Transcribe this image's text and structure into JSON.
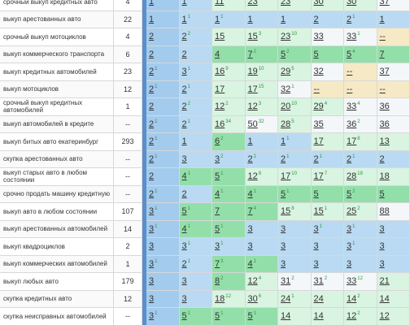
{
  "table": {
    "rows": [
      {
        "keyword": "срочный выкуп кредитных авто",
        "freq": 4,
        "cells": [
          [
            1
          ],
          [
            1
          ],
          [
            11,
            2
          ],
          [
            23
          ],
          [
            23,
            1
          ],
          [
            30
          ],
          [
            30,
            1
          ],
          [
            37
          ]
        ]
      },
      {
        "keyword": "выкуп арестованных авто",
        "freq": 22,
        "cells": [
          [
            1
          ],
          [
            1,
            1
          ],
          [
            1,
            1
          ],
          [
            1
          ],
          [
            1
          ],
          [
            2
          ],
          [
            2,
            1
          ],
          [
            1
          ]
        ]
      },
      {
        "keyword": "срочный выкуп мотоциклов",
        "freq": 4,
        "cells": [
          [
            2
          ],
          [
            2,
            2
          ],
          [
            15
          ],
          [
            15,
            3
          ],
          [
            23,
            10
          ],
          [
            33
          ],
          [
            33,
            1
          ],
          [
            "--"
          ]
        ]
      },
      {
        "keyword": "выкуп коммерческого транспорта",
        "freq": 6,
        "cells": [
          [
            2
          ],
          [
            2
          ],
          [
            4
          ],
          [
            7,
            2
          ],
          [
            5,
            2
          ],
          [
            5
          ],
          [
            5,
            4
          ],
          [
            7
          ]
        ]
      },
      {
        "keyword": "выкуп кредитных автомобилей",
        "freq": 23,
        "cells": [
          [
            2,
            1
          ],
          [
            3,
            1
          ],
          [
            16,
            9
          ],
          [
            19,
            10
          ],
          [
            29,
            5
          ],
          [
            32
          ],
          [
            "--"
          ],
          [
            37
          ]
        ]
      },
      {
        "keyword": "выкуп мотоциклов",
        "freq": 12,
        "cells": [
          [
            2,
            1
          ],
          [
            2,
            1
          ],
          [
            17
          ],
          [
            17,
            15
          ],
          [
            32,
            1
          ],
          [
            "--"
          ],
          [
            "--"
          ],
          [
            "--"
          ]
        ]
      },
      {
        "keyword": "срочный выкуп кредитных автомобилей",
        "freq": 1,
        "cells": [
          [
            2
          ],
          [
            2,
            2
          ],
          [
            12,
            2
          ],
          [
            12,
            3
          ],
          [
            20,
            10
          ],
          [
            29,
            4
          ],
          [
            33,
            4
          ],
          [
            36
          ]
        ]
      },
      {
        "keyword": "выкуп автомобилей в кредите",
        "freq": "--",
        "cells": [
          [
            2,
            1
          ],
          [
            2,
            1
          ],
          [
            16,
            34
          ],
          [
            50,
            32
          ],
          [
            28,
            5
          ],
          [
            35
          ],
          [
            36,
            2
          ],
          [
            36
          ]
        ]
      },
      {
        "keyword": "выкуп битых авто екатеринбург",
        "freq": 293,
        "cells": [
          [
            2,
            1
          ],
          [
            1
          ],
          [
            6,
            2
          ],
          [
            1
          ],
          [
            1,
            1
          ],
          [
            17
          ],
          [
            17,
            8
          ],
          [
            13
          ]
        ]
      },
      {
        "keyword": "скупка арестованных авто",
        "freq": "--",
        "cells": [
          [
            2,
            1
          ],
          [
            3
          ],
          [
            3,
            2
          ],
          [
            2,
            1
          ],
          [
            2,
            1
          ],
          [
            2,
            1
          ],
          [
            2,
            1
          ],
          [
            2
          ]
        ]
      },
      {
        "keyword": "выкуп старых авто в любом состоянии",
        "freq": "--",
        "cells": [
          [
            2
          ],
          [
            4,
            1
          ],
          [
            5,
            1
          ],
          [
            12,
            8
          ],
          [
            17,
            10
          ],
          [
            17,
            7
          ],
          [
            28,
            18
          ],
          [
            18
          ]
        ]
      },
      {
        "keyword": "срочно продать машину кредитную",
        "freq": "--",
        "cells": [
          [
            2,
            1
          ],
          [
            2
          ],
          [
            4,
            1
          ],
          [
            4,
            1
          ],
          [
            5,
            1
          ],
          [
            5
          ],
          [
            5,
            2
          ],
          [
            5
          ]
        ]
      },
      {
        "keyword": "выкуп авто в любом состоянии",
        "freq": 107,
        "cells": [
          [
            3,
            1
          ],
          [
            5,
            1
          ],
          [
            7
          ],
          [
            7,
            4
          ],
          [
            15,
            8
          ],
          [
            15,
            1
          ],
          [
            25,
            2
          ],
          [
            88
          ]
        ]
      },
      {
        "keyword": "выкуп арестованных автомобилей",
        "freq": 14,
        "cells": [
          [
            3,
            1
          ],
          [
            4,
            1
          ],
          [
            5,
            1
          ],
          [
            3
          ],
          [
            3
          ],
          [
            3,
            1
          ],
          [
            3,
            1
          ],
          [
            3
          ]
        ]
      },
      {
        "keyword": "выкуп квадроциклов",
        "freq": 2,
        "cells": [
          [
            3
          ],
          [
            3,
            1
          ],
          [
            3,
            1
          ],
          [
            3
          ],
          [
            3
          ],
          [
            3
          ],
          [
            3,
            1
          ],
          [
            3
          ]
        ]
      },
      {
        "keyword": "выкуп коммерческих автомобилей",
        "freq": 1,
        "cells": [
          [
            3,
            1
          ],
          [
            2,
            1
          ],
          [
            7,
            3
          ],
          [
            4,
            1
          ],
          [
            3
          ],
          [
            3
          ],
          [
            3
          ],
          [
            3
          ]
        ]
      },
      {
        "keyword": "выкуп любых авто",
        "freq": 179,
        "cells": [
          [
            3
          ],
          [
            3
          ],
          [
            8,
            2
          ],
          [
            12,
            4
          ],
          [
            31,
            2
          ],
          [
            31,
            2
          ],
          [
            33,
            12
          ],
          [
            21
          ]
        ]
      },
      {
        "keyword": "скупка кредитных авто",
        "freq": 12,
        "cells": [
          [
            3
          ],
          [
            3
          ],
          [
            18,
            12
          ],
          [
            30,
            6
          ],
          [
            24,
            1
          ],
          [
            24
          ],
          [
            14,
            2
          ],
          [
            14
          ]
        ]
      },
      {
        "keyword": "скупка неисправных автомобилей",
        "freq": "--",
        "cells": [
          [
            3,
            1
          ],
          [
            5,
            1
          ],
          [
            5,
            1
          ],
          [
            5,
            1
          ],
          [
            14
          ],
          [
            14
          ],
          [
            12,
            2
          ],
          [
            12
          ]
        ]
      }
    ]
  }
}
